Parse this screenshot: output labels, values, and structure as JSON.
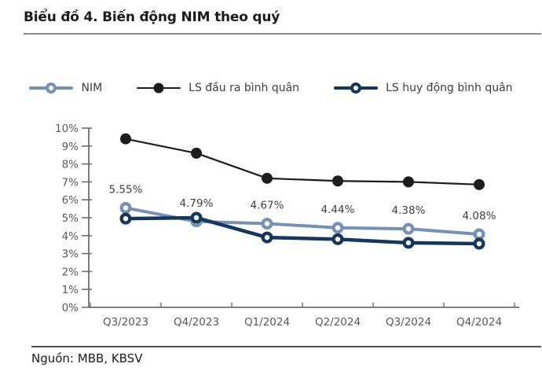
{
  "page": {
    "title": "Biểu đồ 4. Biến động NIM theo quý",
    "source": "Nguồn: MBB, KBSV"
  },
  "colors": {
    "nim": "#7591b4",
    "ls_dau_ra": "#1d1d1d",
    "ls_huy_dong": "#17365d",
    "axis": "#6e6e6e",
    "tick_label": "#595959",
    "data_label": "#404040"
  },
  "legend": {
    "items": [
      {
        "label": "NIM",
        "series": "nim",
        "marker": "ring"
      },
      {
        "label": "LS đầu ra bình quân",
        "series": "ls_dau_ra",
        "marker": "dot"
      },
      {
        "label": "LS huy động bình quân",
        "series": "ls_huy_dong",
        "marker": "ring"
      }
    ]
  },
  "chart_data": {
    "type": "line",
    "title": "Biểu đồ 4. Biến động NIM theo quý",
    "categories": [
      "Q3/2023",
      "Q4/2023",
      "Q1/2024",
      "Q2/2024",
      "Q3/2024",
      "Q4/2024"
    ],
    "series": [
      {
        "name": "NIM",
        "color_key": "nim",
        "marker": "ring",
        "line_width": 4,
        "values": [
          5.55,
          4.79,
          4.67,
          4.44,
          4.38,
          4.08
        ],
        "point_labels": [
          "5.55%",
          "4.79%",
          "4.67%",
          "4.44%",
          "4.38%",
          "4.08%"
        ]
      },
      {
        "name": "LS đầu ra bình quân",
        "color_key": "ls_dau_ra",
        "marker": "dot",
        "line_width": 2.2,
        "values": [
          9.4,
          8.6,
          7.2,
          7.05,
          7.0,
          6.85
        ],
        "point_labels": []
      },
      {
        "name": "LS huy động bình quân",
        "color_key": "ls_huy_dong",
        "marker": "ring",
        "line_width": 4.5,
        "values": [
          4.95,
          5.0,
          3.9,
          3.8,
          3.6,
          3.55
        ],
        "point_labels": []
      }
    ],
    "ylim": [
      0,
      10
    ],
    "ytick_step": 1,
    "ytick_suffix": "%",
    "xlabel": "",
    "ylabel": "",
    "grid": false,
    "legend_position": "top"
  }
}
